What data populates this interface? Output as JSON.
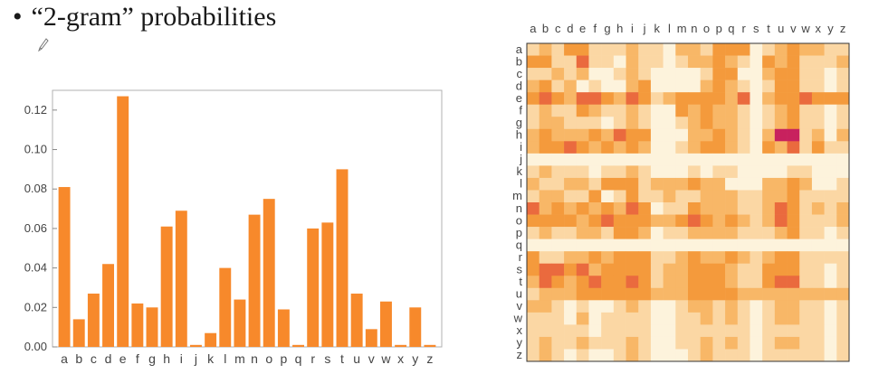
{
  "slide": {
    "bullet": "•",
    "title": "“2-gram” probabilities"
  },
  "pen_icon": "pencil-icon",
  "chart_data": [
    {
      "type": "bar",
      "categories": [
        "a",
        "b",
        "c",
        "d",
        "e",
        "f",
        "g",
        "h",
        "i",
        "j",
        "k",
        "l",
        "m",
        "n",
        "o",
        "p",
        "q",
        "r",
        "s",
        "t",
        "u",
        "v",
        "w",
        "x",
        "y",
        "z"
      ],
      "values": [
        0.081,
        0.014,
        0.027,
        0.042,
        0.127,
        0.022,
        0.02,
        0.061,
        0.069,
        0.001,
        0.007,
        0.04,
        0.024,
        0.067,
        0.075,
        0.019,
        0.001,
        0.06,
        0.063,
        0.09,
        0.027,
        0.009,
        0.023,
        0.001,
        0.02,
        0.001
      ],
      "yticks": [
        "0.00",
        "0.02",
        "0.04",
        "0.06",
        "0.08",
        "0.10",
        "0.12"
      ],
      "ylim": [
        0,
        0.13
      ],
      "color": "#f7892b",
      "grid": false
    },
    {
      "type": "heatmap",
      "row_labels": [
        "a",
        "b",
        "c",
        "d",
        "e",
        "f",
        "g",
        "h",
        "i",
        "j",
        "k",
        "l",
        "m",
        "n",
        "o",
        "p",
        "q",
        "r",
        "s",
        "t",
        "u",
        "v",
        "w",
        "x",
        "y",
        "z"
      ],
      "col_labels": [
        "a",
        "b",
        "c",
        "d",
        "e",
        "f",
        "g",
        "h",
        "i",
        "j",
        "k",
        "l",
        "m",
        "n",
        "o",
        "p",
        "q",
        "r",
        "s",
        "t",
        "u",
        "v",
        "w",
        "x",
        "y",
        "z"
      ],
      "scale": "0 = lightest cream, 5 = darkest magenta",
      "colors": [
        "#fdf3dc",
        "#fbd7a4",
        "#f8b767",
        "#f49a3c",
        "#ea6a3e",
        "#c8215e"
      ],
      "matrix": [
        "12133111211022133301232211",
        "33114110211012232103231112",
        "11212001210000133002331101",
        "23120100230000232101331101",
        "34324432431233332402334333",
        "12113211210032322101231101",
        "12211101210012322101231101",
        "23222324330002232102551202",
        "23343232320012332103241311",
        "00000000000000000000000000",
        "12111011210001011000011000",
        "21122133312223220002232001",
        "12211301311211222112231111",
        "42323232430113222112431212",
        "33332343332234323212431112",
        "12112213320112222111231101",
        "00000000000000000000000000",
        "31122323331123223212331111",
        "34434233331223332113331101",
        "24323433431223332113441101",
        "12223333332223333222222222",
        "22101001210012212101221101",
        "11102011110011212101221101",
        "11111011110011111101111101",
        "12112111210011212101221101",
        "12101001210001211101111101"
      ]
    }
  ]
}
